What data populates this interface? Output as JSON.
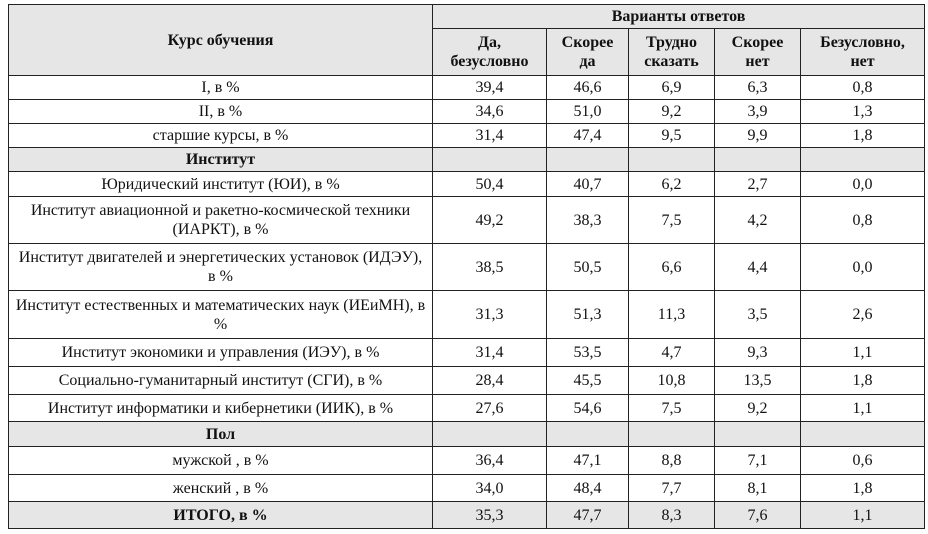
{
  "header": {
    "row_label": "Курс обучения",
    "group_label": "Варианты ответов",
    "columns": [
      "Да, безусловно",
      "Скорее да",
      "Трудно сказать",
      "Скорее нет",
      "Безусловно, нет"
    ],
    "columns_lines": [
      [
        "Да,",
        "безусловно"
      ],
      [
        "Скорее",
        "да"
      ],
      [
        "Трудно",
        "сказать"
      ],
      [
        "Скорее",
        "нет"
      ],
      [
        "Безусловно,",
        "нет"
      ]
    ]
  },
  "rows": [
    {
      "label": "I, в %",
      "values": [
        "39,4",
        "46,6",
        "6,9",
        "6,3",
        "0,8"
      ]
    },
    {
      "label": "II, в %",
      "values": [
        "34,6",
        "51,0",
        "9,2",
        "3,9",
        "1,3"
      ]
    },
    {
      "label": "старшие курсы, в %",
      "values": [
        "31,4",
        "47,4",
        "9,5",
        "9,9",
        "1,8"
      ]
    },
    {
      "group": "Институт"
    },
    {
      "label": "Юридический институт (ЮИ), в %",
      "values": [
        "50,4",
        "40,7",
        "6,2",
        "2,7",
        "0,0"
      ]
    },
    {
      "label": "Институт авиационной и ракетно-космической техники (ИАРКТ), в %",
      "values": [
        "49,2",
        "38,3",
        "7,5",
        "4,2",
        "0,8"
      ]
    },
    {
      "label": "Институт двигателей и энергетических установок (ИДЭУ), в %",
      "values": [
        "38,5",
        "50,5",
        "6,6",
        "4,4",
        "0,0"
      ]
    },
    {
      "label": "Институт естественных и математических наук (ИЕиМН), в %",
      "values": [
        "31,3",
        "51,3",
        "11,3",
        "3,5",
        "2,6"
      ]
    },
    {
      "label": "Институт экономики и управления (ИЭУ), в %",
      "values": [
        "31,4",
        "53,5",
        "4,7",
        "9,3",
        "1,1"
      ]
    },
    {
      "label": "Социально-гуманитарный институт (СГИ), в %",
      "values": [
        "28,4",
        "45,5",
        "10,8",
        "13,5",
        "1,8"
      ]
    },
    {
      "label": "Институт информатики и кибернетики (ИИК), в %",
      "values": [
        "27,6",
        "54,6",
        "7,5",
        "9,2",
        "1,1"
      ]
    },
    {
      "group": "Пол"
    },
    {
      "label": "мужской , в %",
      "values": [
        "36,4",
        "47,1",
        "8,8",
        "7,1",
        "0,6"
      ]
    },
    {
      "label": "женский , в %",
      "values": [
        "34,0",
        "48,4",
        "7,7",
        "8,1",
        "1,8"
      ]
    },
    {
      "label": "ИТОГО, в %",
      "values": [
        "35,3",
        "47,7",
        "8,3",
        "7,6",
        "1,1"
      ],
      "total": true
    }
  ],
  "colors": {
    "header_fill": "#e6e6e6",
    "border": "#222222"
  }
}
